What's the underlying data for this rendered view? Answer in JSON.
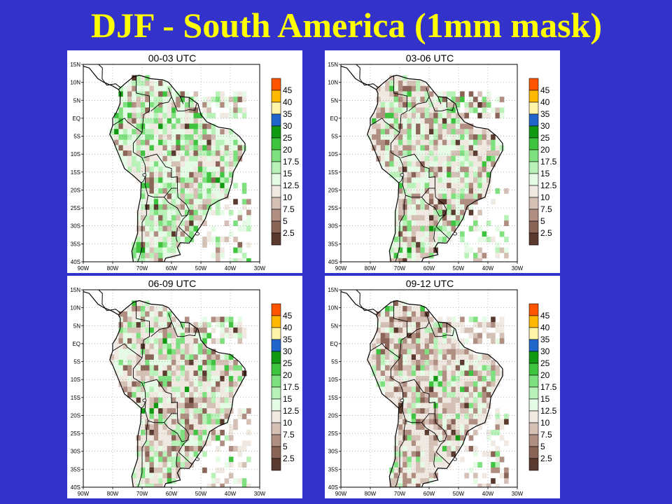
{
  "title": "DJF - South America (1mm mask)",
  "panels": [
    {
      "title": "00-03 UTC",
      "green_share": 0.62
    },
    {
      "title": "03-06 UTC",
      "green_share": 0.42
    },
    {
      "title": "06-09 UTC",
      "green_share": 0.36
    },
    {
      "title": "09-12 UTC",
      "green_share": 0.22
    }
  ],
  "axes": {
    "lat_labels": [
      "15N",
      "10N",
      "5N",
      "EQ",
      "5S",
      "10S",
      "15S",
      "20S",
      "25S",
      "30S",
      "35S",
      "40S"
    ],
    "lon_labels": [
      "90W",
      "80W",
      "70W",
      "60W",
      "50W",
      "40W",
      "30W"
    ],
    "lat_range": [
      -40,
      15
    ],
    "lon_range": [
      -90,
      -30
    ]
  },
  "legend": {
    "labels": [
      "2.5",
      "5",
      "7.5",
      "10",
      "12.5",
      "15",
      "17.5",
      "20",
      "25",
      "30",
      "35",
      "40",
      "45"
    ],
    "colors": [
      "#5a3a2e",
      "#8a6457",
      "#b08e82",
      "#d5c0b6",
      "#f0e9e2",
      "#e6fbe6",
      "#b8f2b8",
      "#7fe07f",
      "#3ec43e",
      "#119911",
      "#2266cc",
      "#fff4a8",
      "#ffb800",
      "#ff5500"
    ]
  }
}
